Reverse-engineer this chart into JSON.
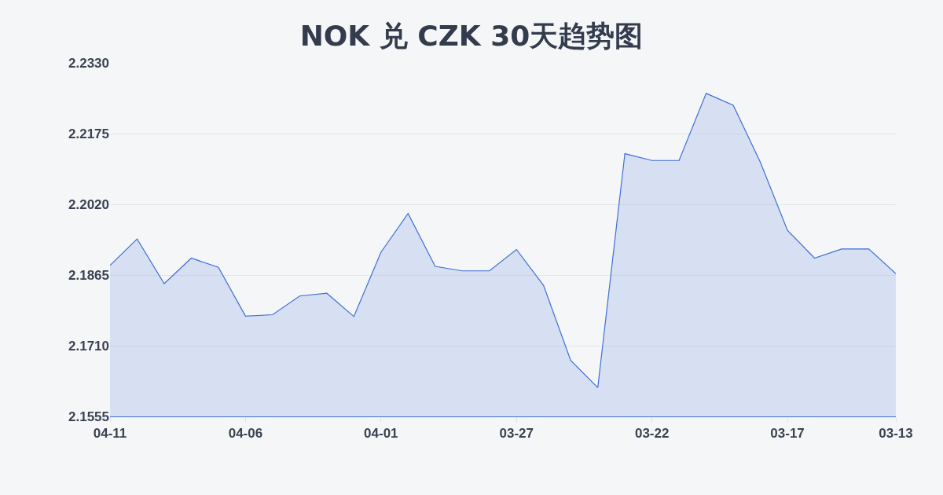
{
  "chart_data": {
    "type": "area",
    "title": "NOK 兑 CZK 30天趋势图",
    "x": [
      "--04-11",
      "--04-10",
      "--04-09",
      "--04-08",
      "--04-07",
      "--04-06",
      "--04-05",
      "--04-04",
      "--04-03",
      "--04-02",
      "--04-01",
      "--03-31",
      "--03-30",
      "--03-29",
      "--03-28",
      "--03-27",
      "--03-26",
      "--03-25",
      "--03-24",
      "--03-23",
      "--03-22",
      "--03-21",
      "--03-20",
      "--03-19",
      "--03-18",
      "--03-17",
      "--03-16",
      "--03-15",
      "--03-14",
      "--03-13"
    ],
    "series": [
      {
        "color": "#3d6fd6",
        "values": [
          2.1886,
          2.1944,
          2.1846,
          2.1902,
          2.1882,
          2.1775,
          2.1778,
          2.1819,
          2.1825,
          2.1774,
          2.1915,
          2.2,
          2.1884,
          2.1874,
          2.1874,
          2.1921,
          2.1842,
          2.1678,
          2.1618,
          2.2131,
          2.2116,
          2.2116,
          2.2263,
          2.2237,
          2.2112,
          2.1963,
          2.1902,
          2.1922,
          2.1922,
          2.1868
        ]
      }
    ],
    "xlim": [
      "--04-11",
      "--03-13"
    ],
    "xticks": [
      {
        "value": "--04-11",
        "label": "04-11"
      },
      {
        "value": "--04-06",
        "label": "04-06"
      },
      {
        "value": "--04-01",
        "label": "04-01"
      },
      {
        "value": "--03-27",
        "label": "03-27"
      },
      {
        "value": "--03-22",
        "label": "03-22"
      },
      {
        "value": "--03-17",
        "label": "03-17"
      },
      {
        "value": "--03-13",
        "label": "03-13"
      }
    ],
    "ylim": [
      2.1555,
      2.233
    ],
    "yticks": [
      2.1555,
      {
        "value": 2.171,
        "label": "2.1710"
      },
      2.1865,
      {
        "value": 2.202,
        "label": "2.2020"
      },
      2.2175,
      {
        "value": 2.233,
        "label": "2.2330"
      }
    ],
    "grid": "y"
  }
}
